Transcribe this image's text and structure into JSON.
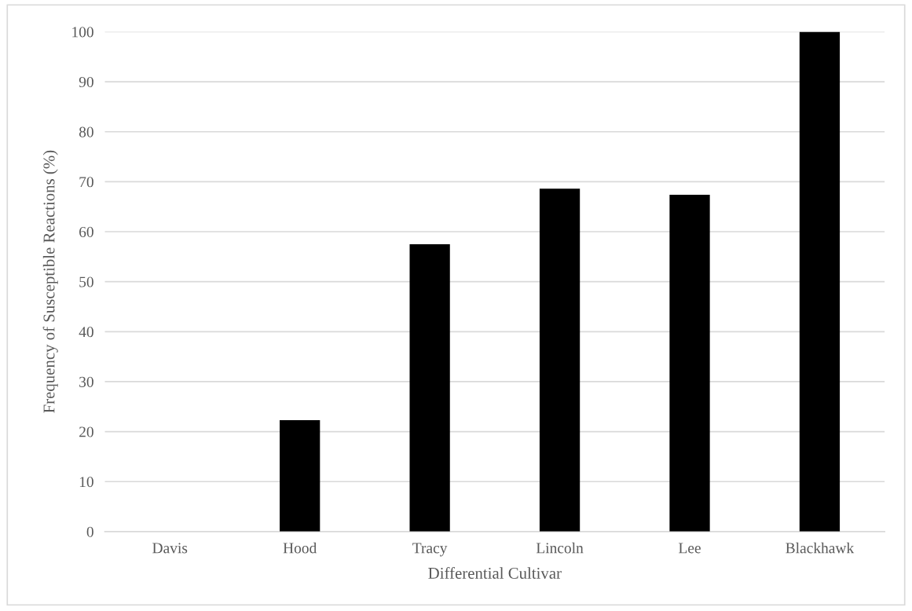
{
  "chart_data": {
    "type": "bar",
    "xlabel": "Differential Cultivar",
    "ylabel": "Frequency of Susceptible Reactions (%)",
    "categories": [
      "Davis",
      "Hood",
      "Tracy",
      "Lincoln",
      "Lee",
      "Blackhawk"
    ],
    "values": [
      0,
      22.3,
      57.5,
      68.6,
      67.4,
      100
    ],
    "color": "#000000",
    "ylim": [
      0,
      100
    ],
    "yticks": [
      0,
      10,
      20,
      30,
      40,
      50,
      60,
      70,
      80,
      90,
      100
    ],
    "grid": "y"
  }
}
